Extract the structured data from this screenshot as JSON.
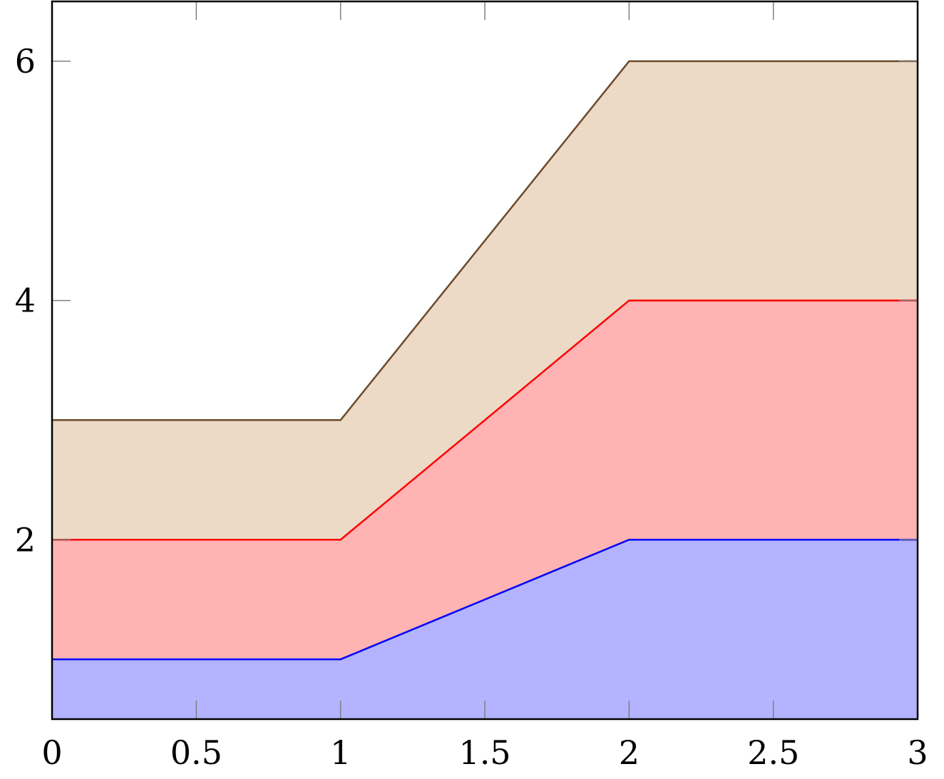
{
  "chart_data": {
    "type": "area",
    "stacked": true,
    "x": [
      0,
      1,
      2,
      3
    ],
    "series": [
      {
        "values": [
          1,
          1,
          2,
          2
        ],
        "line_color": "#0000ff",
        "fill_color": "#b3b3ff"
      },
      {
        "values": [
          1,
          1,
          2,
          2
        ],
        "line_color": "#ff0000",
        "fill_color": "#ffb3b3"
      },
      {
        "values": [
          1,
          1,
          2,
          2
        ],
        "line_color": "#6b4a2b",
        "fill_color": "#ecdac6"
      }
    ],
    "xlim": [
      0,
      3
    ],
    "ylim": [
      0.5,
      6.5
    ],
    "x_ticks": [
      0,
      0.5,
      1,
      1.5,
      2,
      2.5,
      3
    ],
    "x_tick_labels": [
      "0",
      "0.5",
      "1",
      "1.5",
      "2",
      "2.5",
      "3"
    ],
    "y_ticks": [
      2,
      4,
      6
    ],
    "y_tick_labels": [
      "2",
      "4",
      "6"
    ],
    "grid": false,
    "title": "",
    "xlabel": "",
    "ylabel": ""
  }
}
